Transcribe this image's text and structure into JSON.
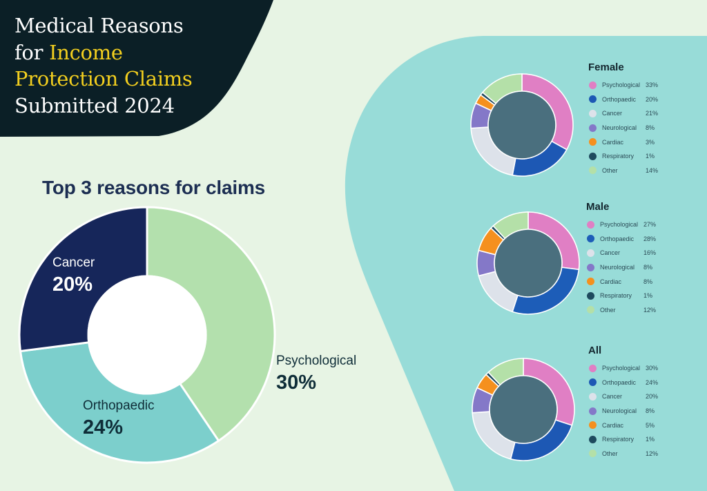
{
  "header": {
    "title_lines": [
      {
        "parts": [
          {
            "text": "Medical Reasons",
            "highlight": false
          }
        ]
      },
      {
        "parts": [
          {
            "text": "for ",
            "highlight": false
          },
          {
            "text": "Income",
            "highlight": true
          }
        ]
      },
      {
        "parts": [
          {
            "text": "Protection Claims",
            "highlight": true
          }
        ]
      },
      {
        "parts": [
          {
            "text": "Submitted 2024",
            "highlight": false
          }
        ]
      }
    ],
    "line1": "Medical Reasons",
    "line2a": "for ",
    "line2b": "Income",
    "line3": "Protection Claims",
    "line4": "Submitted 2024"
  },
  "colors": {
    "background": "#e7f4e4",
    "header_bg": "#0b1f26",
    "panel_bg": "#98dcd8",
    "highlight": "#f3cf1f",
    "donut_hole_small": "#4a6f7e"
  },
  "top3": {
    "title": "Top 3 reasons for claims",
    "segments": [
      {
        "name": "Psychological",
        "pct_label": "30%",
        "value": 30,
        "color": "#b3e0ad"
      },
      {
        "name": "Orthopaedic",
        "pct_label": "24%",
        "value": 24,
        "color": "#7ccfcc"
      },
      {
        "name": "Cancer",
        "pct_label": "20%",
        "value": 20,
        "color": "#16265a"
      }
    ]
  },
  "breakdowns": [
    {
      "title": "Female",
      "items": [
        {
          "label": "Psychological",
          "pct": "33%",
          "value": 33,
          "color": "#e07fc4"
        },
        {
          "label": "Orthopaedic",
          "pct": "20%",
          "value": 20,
          "color": "#1d58b4"
        },
        {
          "label": "Cancer",
          "pct": "21%",
          "value": 21,
          "color": "#dde2ea"
        },
        {
          "label": "Neurological",
          "pct": "8%",
          "value": 8,
          "color": "#8478c8"
        },
        {
          "label": "Cardiac",
          "pct": "3%",
          "value": 3,
          "color": "#f5901e"
        },
        {
          "label": "Respiratory",
          "pct": "1%",
          "value": 1,
          "color": "#1e4a5e"
        },
        {
          "label": "Other",
          "pct": "14%",
          "value": 14,
          "color": "#b4e0a8"
        }
      ]
    },
    {
      "title": "Male",
      "items": [
        {
          "label": "Psychological",
          "pct": "27%",
          "value": 27,
          "color": "#e07fc4"
        },
        {
          "label": "Orthopaedic",
          "pct": "28%",
          "value": 28,
          "color": "#1d5db8"
        },
        {
          "label": "Cancer",
          "pct": "16%",
          "value": 16,
          "color": "#dde2ea"
        },
        {
          "label": "Neurological",
          "pct": "8%",
          "value": 8,
          "color": "#8478c8"
        },
        {
          "label": "Cardiac",
          "pct": "8%",
          "value": 8,
          "color": "#f5901e"
        },
        {
          "label": "Respiratory",
          "pct": "1%",
          "value": 1,
          "color": "#1e4a5e"
        },
        {
          "label": "Other",
          "pct": "12%",
          "value": 12,
          "color": "#b4e0a8"
        }
      ]
    },
    {
      "title": "All",
      "items": [
        {
          "label": "Psychological",
          "pct": "30%",
          "value": 30,
          "color": "#e07fc4"
        },
        {
          "label": "Orthopaedic",
          "pct": "24%",
          "value": 24,
          "color": "#1d58b4"
        },
        {
          "label": "Cancer",
          "pct": "20%",
          "value": 20,
          "color": "#dde2ea"
        },
        {
          "label": "Neurological",
          "pct": "8%",
          "value": 8,
          "color": "#8478c8"
        },
        {
          "label": "Cardiac",
          "pct": "5%",
          "value": 5,
          "color": "#f5901e"
        },
        {
          "label": "Respiratory",
          "pct": "1%",
          "value": 1,
          "color": "#1e4a5e"
        },
        {
          "label": "Other",
          "pct": "12%",
          "value": 12,
          "color": "#b4e0a8"
        }
      ]
    }
  ],
  "chart_data": [
    {
      "type": "pie",
      "subtype": "donut",
      "title": "Top 3 reasons for claims",
      "categories": [
        "Psychological",
        "Orthopaedic",
        "Cancer"
      ],
      "values": [
        30,
        24,
        20
      ],
      "unit": "%",
      "legend_position": "inline labels"
    },
    {
      "type": "pie",
      "subtype": "donut",
      "title": "Female",
      "categories": [
        "Psychological",
        "Orthopaedic",
        "Cancer",
        "Neurological",
        "Cardiac",
        "Respiratory",
        "Other"
      ],
      "values": [
        33,
        20,
        21,
        8,
        3,
        1,
        14
      ],
      "unit": "%",
      "legend_position": "right"
    },
    {
      "type": "pie",
      "subtype": "donut",
      "title": "Male",
      "categories": [
        "Psychological",
        "Orthopaedic",
        "Cancer",
        "Neurological",
        "Cardiac",
        "Respiratory",
        "Other"
      ],
      "values": [
        27,
        28,
        16,
        8,
        8,
        1,
        12
      ],
      "unit": "%",
      "legend_position": "right"
    },
    {
      "type": "pie",
      "subtype": "donut",
      "title": "All",
      "categories": [
        "Psychological",
        "Orthopaedic",
        "Cancer",
        "Neurological",
        "Cardiac",
        "Respiratory",
        "Other"
      ],
      "values": [
        30,
        24,
        20,
        8,
        5,
        1,
        12
      ],
      "unit": "%",
      "legend_position": "right"
    }
  ]
}
